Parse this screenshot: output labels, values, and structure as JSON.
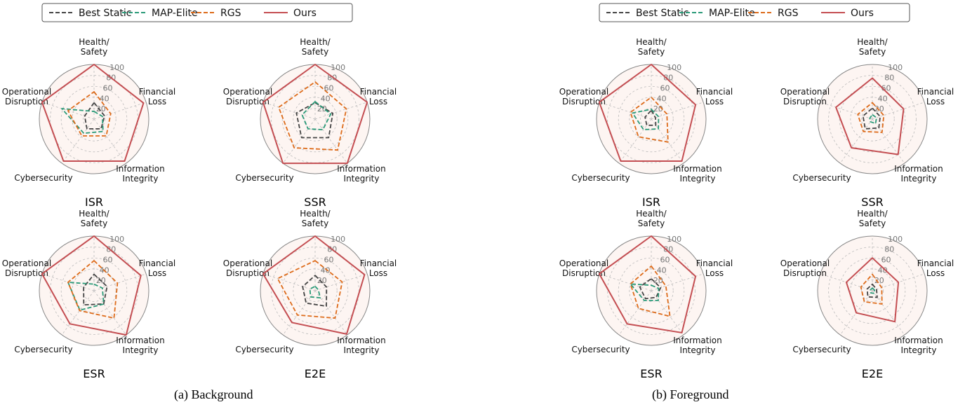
{
  "colors": {
    "best_static": "#444444",
    "map_elite": "#2a9a78",
    "rgs": "#dd6b1a",
    "ours": "#c44e52",
    "grid": "#bbbbbb",
    "fill": "#fbeeea"
  },
  "legend": {
    "items": [
      {
        "label": "Best Static",
        "series": "best_static",
        "dash": true
      },
      {
        "label": "MAP-Elite",
        "series": "map_elite",
        "dash": true
      },
      {
        "label": "RGS",
        "series": "rgs",
        "dash": true
      },
      {
        "label": "Ours",
        "series": "ours",
        "dash": false
      }
    ]
  },
  "axes": {
    "categories": [
      "Health/\nSafety",
      "Financial\nLoss",
      "Information\nIntegrity",
      "Cybersecurity",
      "Operational\nDisruption"
    ],
    "rlim": [
      0,
      100
    ],
    "rticks": [
      20,
      40,
      60,
      80,
      100
    ]
  },
  "captions": {
    "a": "(a) Background",
    "b": "(b) Foreground"
  },
  "chart_data": [
    {
      "type": "radar",
      "panel": "a",
      "title": "ISR",
      "legend_position": "top",
      "categories": [
        "Health/Safety",
        "Financial Loss",
        "Information Integrity",
        "Cybersecurity",
        "Operational Disruption"
      ],
      "series": [
        {
          "name": "Best Static",
          "values": [
            30,
            20,
            22,
            22,
            18
          ]
        },
        {
          "name": "MAP-Elite",
          "values": [
            14,
            16,
            28,
            32,
            62
          ]
        },
        {
          "name": "RGS",
          "values": [
            50,
            32,
            38,
            38,
            50
          ]
        },
        {
          "name": "Ours",
          "values": [
            100,
            95,
            95,
            95,
            100
          ]
        }
      ]
    },
    {
      "type": "radar",
      "panel": "a",
      "title": "SSR",
      "categories": [
        "Health/Safety",
        "Financial Loss",
        "Information Integrity",
        "Cybersecurity",
        "Operational Disruption"
      ],
      "series": [
        {
          "name": "Best Static",
          "values": [
            30,
            34,
            42,
            42,
            36
          ]
        },
        {
          "name": "MAP-Elite",
          "values": [
            32,
            30,
            24,
            22,
            25
          ]
        },
        {
          "name": "RGS",
          "values": [
            68,
            60,
            70,
            65,
            70
          ]
        },
        {
          "name": "Ours",
          "values": [
            100,
            100,
            100,
            100,
            100
          ]
        }
      ]
    },
    {
      "type": "radar",
      "panel": "a",
      "title": "ESR",
      "categories": [
        "Health/Safety",
        "Financial Loss",
        "Information Integrity",
        "Cybersecurity",
        "Operational Disruption"
      ],
      "series": [
        {
          "name": "Best Static",
          "values": [
            30,
            25,
            30,
            32,
            20
          ]
        },
        {
          "name": "MAP-Elite",
          "values": [
            12,
            16,
            30,
            44,
            50
          ]
        },
        {
          "name": "RGS",
          "values": [
            55,
            45,
            62,
            45,
            50
          ]
        },
        {
          "name": "Ours",
          "values": [
            100,
            90,
            100,
            75,
            100
          ]
        }
      ]
    },
    {
      "type": "radar",
      "panel": "a",
      "title": "E2E",
      "categories": [
        "Health/Safety",
        "Financial Loss",
        "Information Integrity",
        "Cybersecurity",
        "Operational Disruption"
      ],
      "series": [
        {
          "name": "Best Static",
          "values": [
            28,
            22,
            35,
            28,
            24
          ]
        },
        {
          "name": "MAP-Elite",
          "values": [
            8,
            6,
            16,
            14,
            10
          ]
        },
        {
          "name": "RGS",
          "values": [
            55,
            52,
            62,
            55,
            72
          ]
        },
        {
          "name": "Ours",
          "values": [
            100,
            95,
            98,
            72,
            100
          ]
        }
      ]
    },
    {
      "type": "radar",
      "panel": "b",
      "title": "ISR",
      "legend_position": "top",
      "categories": [
        "Health/Safety",
        "Financial Loss",
        "Information Integrity",
        "Cybersecurity",
        "Operational Disruption"
      ],
      "series": [
        {
          "name": "Best Static",
          "values": [
            16,
            8,
            14,
            14,
            12
          ]
        },
        {
          "name": "MAP-Elite",
          "values": [
            18,
            14,
            22,
            24,
            36
          ]
        },
        {
          "name": "RGS",
          "values": [
            40,
            30,
            52,
            40,
            40
          ]
        },
        {
          "name": "Ours",
          "values": [
            100,
            85,
            95,
            95,
            100
          ]
        }
      ]
    },
    {
      "type": "radar",
      "panel": "b",
      "title": "SSR",
      "categories": [
        "Health/Safety",
        "Financial Loss",
        "Information Integrity",
        "Cybersecurity",
        "Operational Disruption"
      ],
      "series": [
        {
          "name": "Best Static",
          "values": [
            20,
            15,
            20,
            22,
            18
          ]
        },
        {
          "name": "MAP-Elite",
          "values": [
            8,
            8,
            10,
            6,
            5
          ]
        },
        {
          "name": "RGS",
          "values": [
            30,
            22,
            30,
            28,
            28
          ]
        },
        {
          "name": "Ours",
          "values": [
            75,
            60,
            80,
            65,
            70
          ]
        }
      ]
    },
    {
      "type": "radar",
      "panel": "b",
      "title": "ESR",
      "categories": [
        "Health/Safety",
        "Financial Loss",
        "Information Integrity",
        "Cybersecurity",
        "Operational Disruption"
      ],
      "series": [
        {
          "name": "Best Static",
          "values": [
            22,
            18,
            15,
            18,
            22
          ]
        },
        {
          "name": "MAP-Elite",
          "values": [
            10,
            14,
            22,
            22,
            40
          ]
        },
        {
          "name": "RGS",
          "values": [
            45,
            28,
            58,
            40,
            40
          ]
        },
        {
          "name": "Ours",
          "values": [
            100,
            85,
            95,
            75,
            100
          ]
        }
      ]
    },
    {
      "type": "radar",
      "panel": "b",
      "title": "E2E",
      "categories": [
        "Health/Safety",
        "Financial Loss",
        "Information Integrity",
        "Cybersecurity",
        "Operational Disruption"
      ],
      "series": [
        {
          "name": "Best Static",
          "values": [
            12,
            8,
            15,
            14,
            10
          ]
        },
        {
          "name": "MAP-Elite",
          "values": [
            5,
            4,
            6,
            5,
            4
          ]
        },
        {
          "name": "RGS",
          "values": [
            30,
            18,
            30,
            25,
            22
          ]
        },
        {
          "name": "Ours",
          "values": [
            60,
            50,
            70,
            50,
            50
          ]
        }
      ]
    }
  ]
}
